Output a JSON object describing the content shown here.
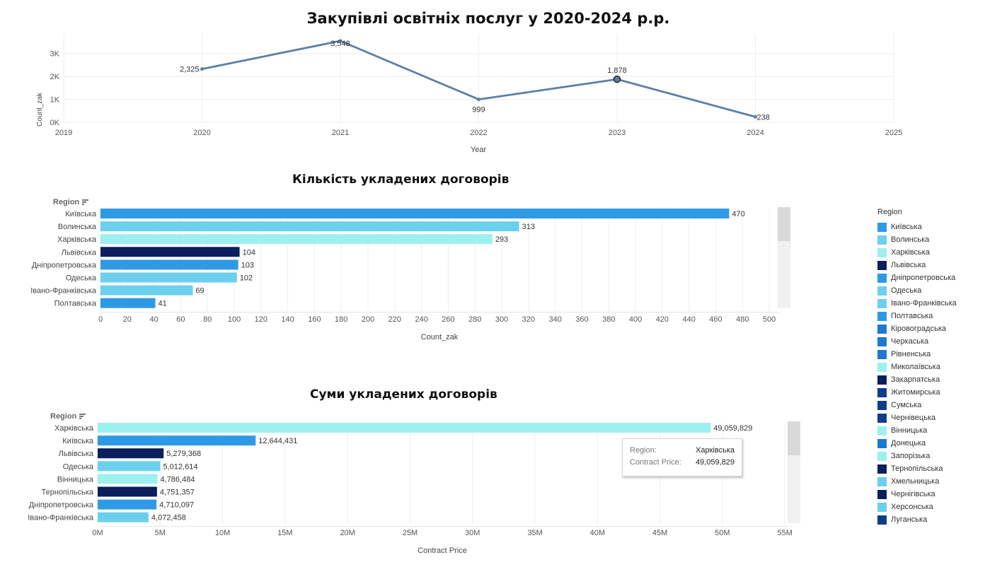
{
  "titles": {
    "main": "Закупівлі освітніх послуг у 2020-2024 р.р.",
    "count_chart": "Кількість укладених договорів",
    "sum_chart": "Суми укладених договорів"
  },
  "chart_data": [
    {
      "type": "line",
      "title": "Закупівлі освітніх послуг у 2020-2024 р.р.",
      "xlabel": "Year",
      "ylabel": "Count_zak",
      "x": [
        2020,
        2021,
        2022,
        2023,
        2024
      ],
      "values": [
        2325,
        3548,
        999,
        1878,
        238
      ],
      "data_labels": [
        "2,325",
        "3,548",
        "999",
        "1,878",
        "238"
      ],
      "xlim": [
        2019,
        2025
      ],
      "ylim": [
        0,
        3700
      ],
      "x_ticks": [
        "2019",
        "2020",
        "2021",
        "2022",
        "2023",
        "2024",
        "2025"
      ],
      "y_ticks": [
        {
          "value": 0,
          "label": "0K"
        },
        {
          "value": 1000,
          "label": "1K"
        },
        {
          "value": 2000,
          "label": "2K"
        },
        {
          "value": 3000,
          "label": "3K"
        }
      ],
      "highlighted_point": 2023,
      "color": "#5b7fa6",
      "grid": true
    },
    {
      "type": "bar",
      "orientation": "horizontal",
      "title": "Кількість укладених договорів",
      "xlabel": "Count_zak",
      "ylabel": "Region",
      "categories": [
        "Київська",
        "Волинська",
        "Харківська",
        "Львівська",
        "Дніпропетровська",
        "Одеська",
        "Івано-Франківська",
        "Полтавська"
      ],
      "values": [
        470,
        313,
        293,
        104,
        103,
        102,
        69,
        41
      ],
      "data_labels": [
        "470",
        "313",
        "293",
        "104",
        "103",
        "102",
        "69",
        "41"
      ],
      "colors": [
        "#2e9ae6",
        "#6ccfee",
        "#9ef0f0",
        "#0b1f5e",
        "#2e9ae6",
        "#6ccfee",
        "#6ccfee",
        "#2e9ae6"
      ],
      "xlim": [
        0,
        510
      ],
      "x_ticks": [
        0,
        20,
        40,
        60,
        80,
        100,
        120,
        140,
        160,
        180,
        200,
        220,
        240,
        260,
        280,
        300,
        320,
        340,
        360,
        380,
        400,
        420,
        440,
        460,
        480,
        500
      ],
      "grid": true
    },
    {
      "type": "bar",
      "orientation": "horizontal",
      "title": "Суми укладених договорів",
      "xlabel": "Contract Price",
      "ylabel": "Region",
      "categories": [
        "Харківська",
        "Київська",
        "Львівська",
        "Одеська",
        "Вінницька",
        "Тернопільська",
        "Дніпропетровська",
        "Івано-Франківська"
      ],
      "values": [
        49059829,
        12644431,
        5279368,
        5012614,
        4786484,
        4751357,
        4710097,
        4072458
      ],
      "data_labels": [
        "49,059,829",
        "12,644,431",
        "5,279,368",
        "5,012,614",
        "4,786,484",
        "4,751,357",
        "4,710,097",
        "4,072,458"
      ],
      "colors": [
        "#9ef0f0",
        "#2e9ae6",
        "#0b1f5e",
        "#6ccfee",
        "#9ef0f0",
        "#0b1f5e",
        "#2e9ae6",
        "#6ccfee"
      ],
      "xlim": [
        0,
        55500000
      ],
      "x_ticks": [
        {
          "value": 0,
          "label": "0M"
        },
        {
          "value": 5000000,
          "label": "5M"
        },
        {
          "value": 10000000,
          "label": "10M"
        },
        {
          "value": 15000000,
          "label": "15M"
        },
        {
          "value": 20000000,
          "label": "20M"
        },
        {
          "value": 25000000,
          "label": "25M"
        },
        {
          "value": 30000000,
          "label": "30M"
        },
        {
          "value": 35000000,
          "label": "35M"
        },
        {
          "value": 40000000,
          "label": "40M"
        },
        {
          "value": 45000000,
          "label": "45M"
        },
        {
          "value": 50000000,
          "label": "50M"
        },
        {
          "value": 55000000,
          "label": "55M"
        }
      ],
      "grid": true
    }
  ],
  "region_header": "Region",
  "legend": {
    "title": "Region",
    "items": [
      {
        "label": "Київська",
        "color": "#2e9ae6"
      },
      {
        "label": "Волинська",
        "color": "#6ccfee"
      },
      {
        "label": "Харківська",
        "color": "#9ef0f0"
      },
      {
        "label": "Львівська",
        "color": "#0b1f5e"
      },
      {
        "label": "Дніпропетровська",
        "color": "#2e9ae6"
      },
      {
        "label": "Одеська",
        "color": "#6ccfee"
      },
      {
        "label": "Івано-Франківська",
        "color": "#6ccfee"
      },
      {
        "label": "Полтавська",
        "color": "#2e9ae6"
      },
      {
        "label": "Кіровоградська",
        "color": "#1e78d0"
      },
      {
        "label": "Черкаська",
        "color": "#1e78d0"
      },
      {
        "label": "Рівненська",
        "color": "#1e78d0"
      },
      {
        "label": "Миколаївська",
        "color": "#9ef0f0"
      },
      {
        "label": "Закарпатська",
        "color": "#0b1f5e"
      },
      {
        "label": "Житомирська",
        "color": "#0e3c8a"
      },
      {
        "label": "Сумська",
        "color": "#0e3c8a"
      },
      {
        "label": "Чернівецька",
        "color": "#0e3c8a"
      },
      {
        "label": "Вінницька",
        "color": "#9ef0f0"
      },
      {
        "label": "Донецька",
        "color": "#1e78d0"
      },
      {
        "label": "Запорізька",
        "color": "#9ef0f0"
      },
      {
        "label": "Тернопільська",
        "color": "#0b1f5e"
      },
      {
        "label": "Хмельницька",
        "color": "#6ccfee"
      },
      {
        "label": "Чернігівська",
        "color": "#0b1f5e"
      },
      {
        "label": "Херсонська",
        "color": "#6ccfee"
      },
      {
        "label": "Луганська",
        "color": "#0e3c8a"
      }
    ]
  },
  "tooltip": {
    "region_key": "Region:",
    "region_value": "Харківська",
    "price_key": "Contract Price:",
    "price_value": "49,059,829"
  }
}
